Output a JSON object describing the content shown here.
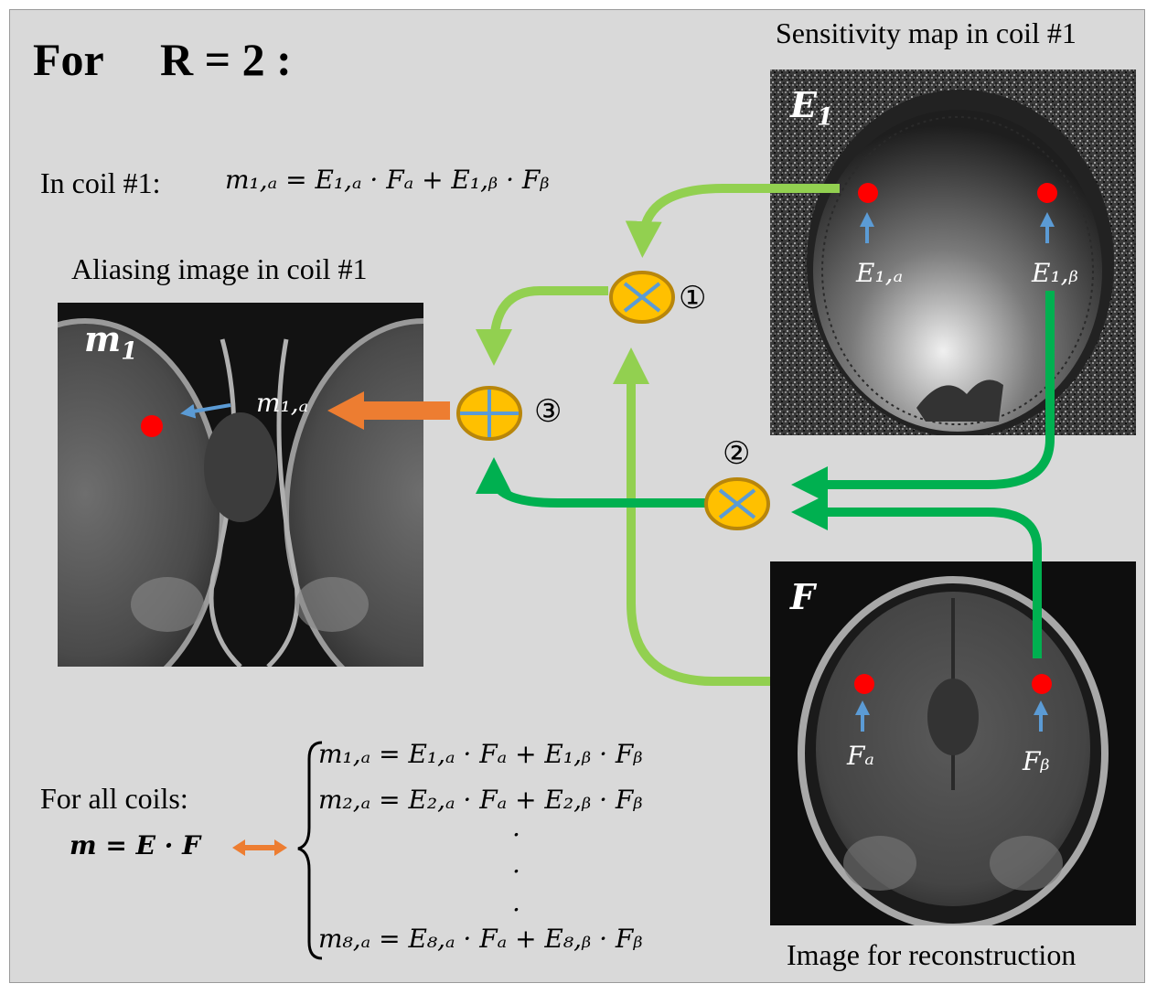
{
  "title": {
    "prefix": "For",
    "ratio": "R = 2 :"
  },
  "labels": {
    "sensitivity": "Sensitivity map in coil #1",
    "aliasing": "Aliasing image in coil #1",
    "reconstruction": "Image for reconstruction",
    "coil1_prefix": "In coil #1:",
    "allcoils": "For all coils:"
  },
  "images": {
    "E1": "E",
    "E1_sub": "1",
    "m1": "m",
    "m1_sub": "1",
    "F": "F"
  },
  "equations": {
    "coil1": "m₁,ₐ = E₁,ₐ · Fₐ + E₁,ᵦ · Fᵦ",
    "matrix": "m = E · F",
    "sys1": "m₁,ₐ = E₁,ₐ · Fₐ + E₁,ᵦ · Fᵦ",
    "sys2": "m₂,ₐ = E₂,ₐ · Fₐ + E₂,ᵦ · Fᵦ",
    "sys8": "m₈,ₐ = E₈,ₐ · Fₐ + E₈,ᵦ · Fᵦ",
    "dot": "."
  },
  "points": {
    "E1a": "E₁,ₐ",
    "E1b": "E₁,ᵦ",
    "Fa": "Fₐ",
    "Fb": "Fᵦ",
    "m1a": "m₁,ₐ"
  },
  "operators": {
    "op1": "①",
    "op2": "②",
    "op3": "③"
  },
  "colors": {
    "panel": "#d9d9d9",
    "light_green": "#92d050",
    "dark_green": "#00b050",
    "orange": "#ed7d31",
    "node_fill": "#ffc000",
    "node_stroke": "#b8860b",
    "node_symbol": "#5b9bd5",
    "point": "#ff0000",
    "pointer": "#5b9bd5"
  }
}
